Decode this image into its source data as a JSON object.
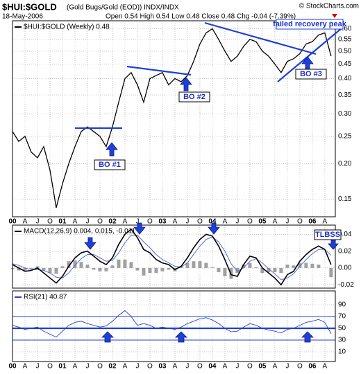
{
  "header": {
    "title": "$HUI:$GOLD",
    "subtitle": "(Gold Bugs/Gold (EOD)) INDX/INDX",
    "credit": "© StockCharts.com",
    "date": "18-May-2006",
    "quote": "Open 0.54 High 0.54 Low 0.48 Close 0.48 Chg -0.04 (-7.39%)"
  },
  "chart_data": [
    {
      "type": "line",
      "legend_label": "$HUI:$GOLD (Weekly) 0.48",
      "log_scale": true,
      "grid": true,
      "x": [
        2000,
        2000.125,
        2000.25,
        2000.375,
        2000.5,
        2000.625,
        2000.75,
        2000.875,
        2001,
        2001.125,
        2001.25,
        2001.375,
        2001.5,
        2001.625,
        2001.75,
        2001.875,
        2002,
        2002.125,
        2002.25,
        2002.375,
        2002.5,
        2002.625,
        2002.75,
        2002.875,
        2003,
        2003.125,
        2003.25,
        2003.375,
        2003.5,
        2003.625,
        2003.75,
        2003.875,
        2004,
        2004.125,
        2004.25,
        2004.375,
        2004.5,
        2004.625,
        2004.75,
        2004.875,
        2005,
        2005.125,
        2005.25,
        2005.375,
        2005.5,
        2005.625,
        2005.75,
        2005.875,
        2006,
        2006.125,
        2006.25,
        2006.375
      ],
      "series": [
        {
          "color": "#000000",
          "values": [
            0.26,
            0.24,
            0.25,
            0.22,
            0.21,
            0.23,
            0.19,
            0.14,
            0.17,
            0.2,
            0.23,
            0.26,
            0.27,
            0.26,
            0.25,
            0.23,
            0.27,
            0.33,
            0.4,
            0.42,
            0.38,
            0.33,
            0.4,
            0.41,
            0.42,
            0.38,
            0.4,
            0.39,
            0.41,
            0.46,
            0.53,
            0.58,
            0.6,
            0.55,
            0.5,
            0.46,
            0.48,
            0.52,
            0.55,
            0.54,
            0.5,
            0.48,
            0.45,
            0.42,
            0.46,
            0.47,
            0.49,
            0.53,
            0.54,
            0.57,
            0.58,
            0.48
          ]
        }
      ],
      "xlim": [
        2000,
        2006.46
      ],
      "xticks": [
        {
          "value": 2000,
          "label": "00"
        },
        {
          "value": 2000.25,
          "label": "A"
        },
        {
          "value": 2000.5,
          "label": "J"
        },
        {
          "value": 2000.75,
          "label": "O"
        },
        {
          "value": 2001,
          "label": "01"
        },
        {
          "value": 2001.25,
          "label": "A"
        },
        {
          "value": 2001.5,
          "label": "J"
        },
        {
          "value": 2001.75,
          "label": "O"
        },
        {
          "value": 2002,
          "label": "02"
        },
        {
          "value": 2002.25,
          "label": "A"
        },
        {
          "value": 2002.5,
          "label": "J"
        },
        {
          "value": 2002.75,
          "label": "O"
        },
        {
          "value": 2003,
          "label": "03"
        },
        {
          "value": 2003.25,
          "label": "A"
        },
        {
          "value": 2003.5,
          "label": "J"
        },
        {
          "value": 2003.75,
          "label": "O"
        },
        {
          "value": 2004,
          "label": "04"
        },
        {
          "value": 2004.25,
          "label": "A"
        },
        {
          "value": 2004.5,
          "label": "J"
        },
        {
          "value": 2004.75,
          "label": "O"
        },
        {
          "value": 2005,
          "label": "05"
        },
        {
          "value": 2005.25,
          "label": "A"
        },
        {
          "value": 2005.5,
          "label": "J"
        },
        {
          "value": 2005.75,
          "label": "O"
        },
        {
          "value": 2006,
          "label": "06"
        },
        {
          "value": 2006.25,
          "label": "A"
        }
      ],
      "ylim": [
        0.13,
        0.64
      ],
      "yticks": [
        0.15,
        {
          "value": 0.2,
          "label": "0.20"
        },
        0.25,
        {
          "value": 0.3,
          "label": "0.30"
        },
        0.35,
        {
          "value": 0.4,
          "label": "0.40"
        },
        0.45,
        {
          "value": 0.5,
          "label": "0.50"
        },
        0.55,
        {
          "value": 0.6,
          "label": "0.60"
        }
      ],
      "annotations": [
        "BO #1",
        "BO #2",
        "BO #3",
        "failed recovery peak"
      ]
    },
    {
      "type": "macd",
      "legend_label": "MACD(12,26,9) 0.004, 0.015, -0.011",
      "grid": true,
      "series": [
        {
          "name": "MACD",
          "color": "#000000",
          "values": [
            0.004,
            0,
            -0.004,
            -0.003,
            0,
            -0.006,
            -0.012,
            -0.018,
            -0.01,
            0.002,
            0.012,
            0.018,
            0.02,
            0.014,
            0.008,
            0.004,
            0.012,
            0.028,
            0.04,
            0.046,
            0.036,
            0.022,
            0.018,
            0.01,
            0.006,
            0.004,
            -0.002,
            0.002,
            0.012,
            0.024,
            0.034,
            0.04,
            0.038,
            0.026,
            0.01,
            -0.008,
            -0.01,
            0.004,
            0.014,
            0.012,
            0,
            -0.006,
            -0.012,
            -0.02,
            -0.008,
            -0.004,
            0.008,
            0.016,
            0.022,
            0.026,
            0.022,
            0.004
          ]
        },
        {
          "name": "Signal",
          "color": "#5a6ad0",
          "values": [
            0.005,
            0.003,
            0,
            -0.002,
            -0.002,
            -0.003,
            -0.006,
            -0.011,
            -0.012,
            -0.006,
            0.003,
            0.011,
            0.016,
            0.016,
            0.012,
            0.008,
            0.009,
            0.018,
            0.03,
            0.039,
            0.039,
            0.031,
            0.024,
            0.016,
            0.01,
            0.006,
            0.002,
            0.001,
            0.006,
            0.016,
            0.026,
            0.034,
            0.037,
            0.031,
            0.02,
            0.005,
            -0.004,
            0,
            0.008,
            0.011,
            0.006,
            -0.001,
            -0.007,
            -0.014,
            -0.012,
            -0.007,
            0.002,
            0.01,
            0.017,
            0.022,
            0.022,
            0.015
          ]
        },
        {
          "name": "Histogram",
          "color": "#a0a0a0",
          "values": [
            -0.001,
            -0.003,
            -0.004,
            -0.001,
            0.002,
            -0.003,
            -0.006,
            -0.007,
            0.002,
            0.008,
            0.009,
            0.007,
            0.004,
            -0.002,
            -0.004,
            -0.004,
            0.003,
            0.01,
            0.01,
            0.007,
            -0.003,
            -0.009,
            -0.006,
            -0.006,
            -0.004,
            -0.002,
            -0.004,
            0.001,
            0.006,
            0.008,
            0.008,
            0.006,
            0.001,
            -0.005,
            -0.01,
            -0.013,
            -0.006,
            0.004,
            0.006,
            0.001,
            -0.006,
            -0.005,
            -0.005,
            -0.006,
            0.004,
            0.003,
            0.006,
            0.006,
            0.005,
            0.004,
            0,
            -0.011
          ]
        }
      ],
      "ylim": [
        -0.024,
        0.051
      ],
      "yticks": [
        -0.02,
        {
          "value": 0,
          "label": "0.00"
        },
        0.02,
        0.04
      ],
      "annotations": [
        "TLBSS"
      ]
    },
    {
      "type": "rsi",
      "legend_label": "RSI(21) 40.87",
      "grid": true,
      "series": [
        {
          "color": "#2a3fc8",
          "values": [
            55,
            52,
            48,
            50,
            52,
            45,
            40,
            35,
            45,
            55,
            60,
            62,
            58,
            55,
            52,
            54,
            62,
            72,
            80,
            70,
            55,
            58,
            55,
            50,
            52,
            50,
            48,
            52,
            58,
            62,
            66,
            68,
            64,
            58,
            50,
            44,
            45,
            52,
            58,
            55,
            50,
            47,
            45,
            42,
            48,
            50,
            55,
            60,
            62,
            65,
            60,
            40.87
          ]
        }
      ],
      "ylim": [
        -6.5,
        113.5
      ],
      "yticks": [
        10,
        30,
        50,
        70,
        90
      ],
      "levels": [
        30,
        70
      ],
      "center_line": 50
    }
  ]
}
